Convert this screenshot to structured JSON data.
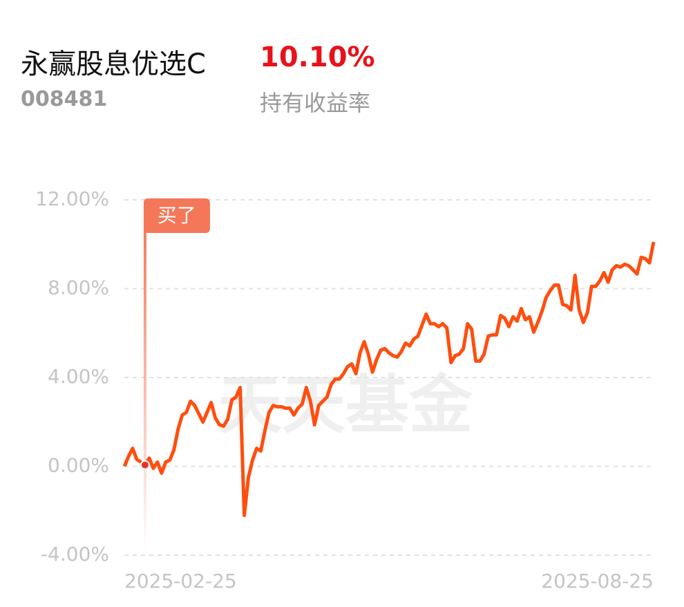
{
  "header": {
    "name": "永赢股息优选C",
    "code": "008481",
    "return": "10.10%",
    "return_label": "持有收益率"
  },
  "chart_data": {
    "type": "line",
    "watermark": "天天基金",
    "color": "#ff4e0f",
    "grid": true,
    "ylim": [
      -4,
      12
    ],
    "yticks": [
      {
        "value": -4,
        "label": "-4.00%"
      },
      {
        "value": 0,
        "label": "0.00%"
      },
      {
        "value": 4,
        "label": "4.00%"
      },
      {
        "value": 8,
        "label": "8.00%"
      },
      {
        "value": 12,
        "label": "12.00%"
      }
    ],
    "annotation": {
      "label": "买了",
      "index": 5
    },
    "categories": [
      "2025-02-25",
      null,
      null,
      null,
      null,
      null,
      null,
      null,
      null,
      null,
      null,
      null,
      null,
      null,
      null,
      null,
      null,
      null,
      null,
      null,
      null,
      null,
      null,
      null,
      null,
      null,
      null,
      null,
      null,
      null,
      null,
      null,
      null,
      null,
      null,
      null,
      null,
      null,
      null,
      null,
      null,
      null,
      null,
      null,
      null,
      null,
      null,
      null,
      null,
      null,
      null,
      null,
      null,
      null,
      null,
      null,
      null,
      null,
      null,
      null,
      null,
      null,
      null,
      null,
      null,
      null,
      null,
      null,
      null,
      null,
      null,
      null,
      null,
      null,
      null,
      null,
      null,
      null,
      null,
      null,
      null,
      null,
      null,
      null,
      null,
      null,
      null,
      null,
      null,
      null,
      null,
      null,
      null,
      null,
      null,
      null,
      null,
      null,
      null,
      null,
      null,
      null,
      null,
      null,
      null,
      null,
      null,
      null,
      null,
      null,
      null,
      null,
      null,
      null,
      null,
      null,
      null,
      null,
      null,
      null,
      null,
      null,
      null,
      null,
      null,
      null,
      null,
      null,
      "2025-08-25"
    ],
    "values": [
      0,
      0.44,
      0.81,
      0.31,
      0.19,
      0.06,
      0.37,
      -0.09,
      0.19,
      -0.31,
      0.19,
      0.28,
      0.75,
      1.68,
      2.31,
      2.43,
      2.93,
      2.74,
      2.37,
      1.99,
      2.43,
      2.87,
      2.18,
      1.87,
      1.81,
      2.12,
      2.99,
      3.12,
      3.55,
      -2.21,
      -0.5,
      0.28,
      0.81,
      0.69,
      1.62,
      2.43,
      2.74,
      2.68,
      2.68,
      2.62,
      2.62,
      2.31,
      2.62,
      2.8,
      3.55,
      2.93,
      1.87,
      2.74,
      2.93,
      3.12,
      3.68,
      3.93,
      3.93,
      4.17,
      4.49,
      4.61,
      4.17,
      5.11,
      5.61,
      5.05,
      4.24,
      4.8,
      5.23,
      5.3,
      5.11,
      4.98,
      4.92,
      5.17,
      5.55,
      5.42,
      5.73,
      5.86,
      6.36,
      6.85,
      6.42,
      6.42,
      6.29,
      6.42,
      6.23,
      4.67,
      4.98,
      5.05,
      5.3,
      6.42,
      6.17,
      4.74,
      4.74,
      5.05,
      5.86,
      5.92,
      5.92,
      6.79,
      6.67,
      6.29,
      6.73,
      6.54,
      7.1,
      6.6,
      6.73,
      6.04,
      6.48,
      6.98,
      7.6,
      7.91,
      8.16,
      8.16,
      7.29,
      7.23,
      7.04,
      8.6,
      7.04,
      6.48,
      6.92,
      8.1,
      8.1,
      8.35,
      8.72,
      8.29,
      8.85,
      9.03,
      8.97,
      9.1,
      9.03,
      8.85,
      8.66,
      9.41,
      9.35,
      9.16,
      10.1
    ]
  }
}
